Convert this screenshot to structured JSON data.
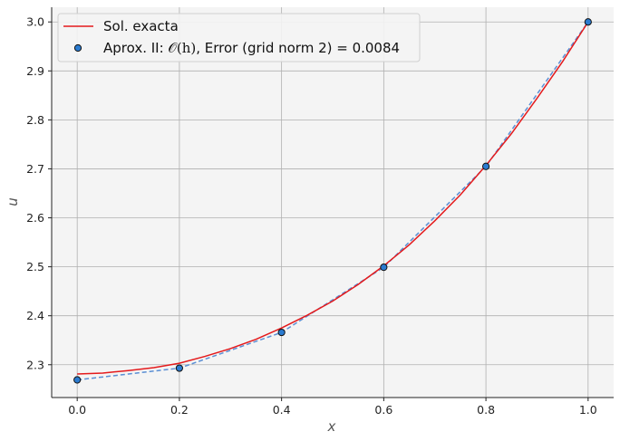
{
  "chart_data": {
    "type": "line",
    "xlabel": "x",
    "ylabel": "u",
    "xlim": [
      -0.05,
      1.05
    ],
    "ylim": [
      2.233,
      3.03
    ],
    "xticks": [
      0.0,
      0.2,
      0.4,
      0.6,
      0.8,
      1.0
    ],
    "xtick_labels": [
      "0.0",
      "0.2",
      "0.4",
      "0.6",
      "0.8",
      "1.0"
    ],
    "yticks": [
      2.3,
      2.4,
      2.5,
      2.6,
      2.7,
      2.8,
      2.9,
      3.0
    ],
    "ytick_labels": [
      "2.3",
      "2.4",
      "2.5",
      "2.6",
      "2.7",
      "2.8",
      "2.9",
      "3.0"
    ],
    "grid": true,
    "legend_position": "top-left",
    "colors": {
      "exact": "#e41a1c",
      "approx_line": "#5b8fd4",
      "marker_fill": "#2b7bd0",
      "marker_edge": "#111111",
      "plot_bg": "#f4f4f4",
      "grid": "#b0b0b0"
    },
    "series": [
      {
        "name": "Sol. exacta",
        "style": "solid",
        "x": [
          0.0,
          0.05,
          0.1,
          0.15,
          0.2,
          0.25,
          0.3,
          0.35,
          0.4,
          0.45,
          0.5,
          0.55,
          0.6,
          0.65,
          0.7,
          0.75,
          0.8,
          0.85,
          0.9,
          0.95,
          1.0
        ],
        "y": [
          2.281,
          2.283,
          2.288,
          2.294,
          2.303,
          2.317,
          2.333,
          2.352,
          2.375,
          2.401,
          2.43,
          2.464,
          2.502,
          2.545,
          2.594,
          2.647,
          2.707,
          2.772,
          2.844,
          2.919,
          3.0
        ]
      },
      {
        "name_prefix": "Aprox. II: ",
        "name_math": "𝒪(h)",
        "name_suffix": ", Error (grid norm 2) = 0.0084",
        "style": "dashed-with-markers",
        "x": [
          0.0,
          0.2,
          0.4,
          0.6,
          0.8,
          1.0
        ],
        "y": [
          2.269,
          2.293,
          2.366,
          2.499,
          2.705,
          3.0
        ]
      }
    ]
  }
}
